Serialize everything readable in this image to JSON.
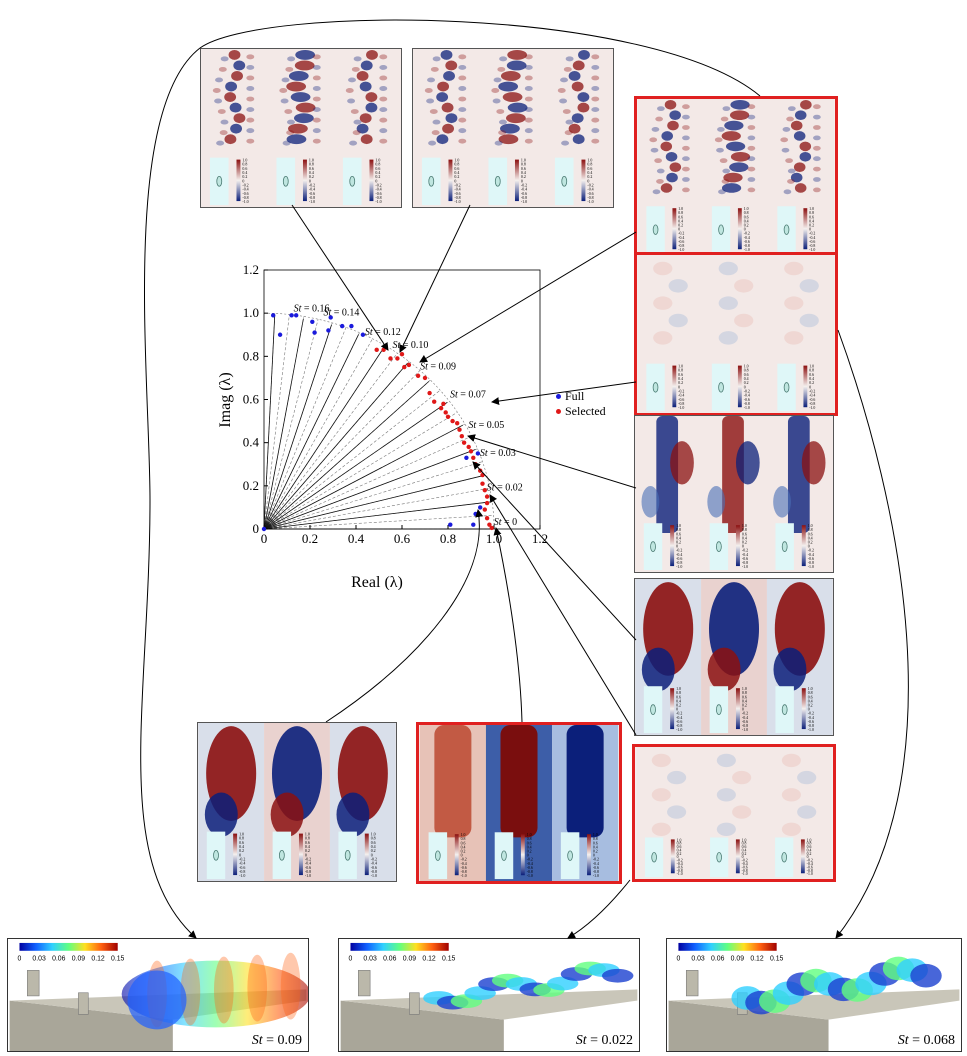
{
  "chart_data": {
    "type": "scatter",
    "xlabel": "Real (λ)",
    "ylabel": "Imag (λ)",
    "xlim": [
      0,
      1.2
    ],
    "ylim": [
      0,
      1.2
    ],
    "xticks": [
      "0",
      "0.2",
      "0.4",
      "0.6",
      "0.8",
      "1.0",
      "1.2"
    ],
    "yticks": [
      "0",
      "0.2",
      "0.4",
      "0.6",
      "0.8",
      "1.0",
      "1.2"
    ],
    "legend_position": "right",
    "series": [
      {
        "name": "Full",
        "color": "#1a1adc",
        "points": [
          [
            0.04,
            0.99
          ],
          [
            0.07,
            0.9
          ],
          [
            0.12,
            0.99
          ],
          [
            0.14,
            0.99
          ],
          [
            0.21,
            0.96
          ],
          [
            0.22,
            0.91
          ],
          [
            0.28,
            0.92
          ],
          [
            0.29,
            0.98
          ],
          [
            0.34,
            0.94
          ],
          [
            0.38,
            0.94
          ],
          [
            0.43,
            0.9
          ],
          [
            0.81,
            0.02
          ],
          [
            0.91,
            0.02
          ],
          [
            0.92,
            0.07
          ],
          [
            0.94,
            0.1
          ],
          [
            0.88,
            0.33
          ],
          [
            0.93,
            0.35
          ],
          [
            0.0,
            0.0
          ]
        ]
      },
      {
        "name": "Selected",
        "color": "#e01818",
        "points": [
          [
            0.49,
            0.83
          ],
          [
            0.52,
            0.83
          ],
          [
            0.55,
            0.79
          ],
          [
            0.58,
            0.79
          ],
          [
            0.6,
            0.81
          ],
          [
            0.61,
            0.75
          ],
          [
            0.63,
            0.76
          ],
          [
            0.67,
            0.71
          ],
          [
            0.7,
            0.7
          ],
          [
            0.72,
            0.63
          ],
          [
            0.74,
            0.59
          ],
          [
            0.77,
            0.56
          ],
          [
            0.78,
            0.58
          ],
          [
            0.79,
            0.54
          ],
          [
            0.8,
            0.52
          ],
          [
            0.82,
            0.5
          ],
          [
            0.84,
            0.49
          ],
          [
            0.85,
            0.46
          ],
          [
            0.86,
            0.43
          ],
          [
            0.87,
            0.4
          ],
          [
            0.89,
            0.38
          ],
          [
            0.9,
            0.36
          ],
          [
            0.91,
            0.33
          ],
          [
            0.92,
            0.3
          ],
          [
            0.94,
            0.27
          ],
          [
            0.95,
            0.25
          ],
          [
            0.95,
            0.21
          ],
          [
            0.96,
            0.18
          ],
          [
            0.97,
            0.15
          ],
          [
            0.97,
            0.12
          ],
          [
            0.96,
            0.09
          ],
          [
            0.97,
            0.05
          ],
          [
            0.98,
            0.02
          ],
          [
            0.99,
            0.005
          ]
        ]
      }
    ],
    "annotations": [
      {
        "label": "St = 0.16",
        "x": 0.12,
        "y": 0.99
      },
      {
        "label": "St = 0.14",
        "x": 0.25,
        "y": 0.97
      },
      {
        "label": "St = 0.12",
        "x": 0.43,
        "y": 0.88
      },
      {
        "label": "St = 0.10",
        "x": 0.55,
        "y": 0.82
      },
      {
        "label": "St = 0.09",
        "x": 0.67,
        "y": 0.72
      },
      {
        "label": "St = 0.07",
        "x": 0.8,
        "y": 0.59
      },
      {
        "label": "St = 0.05",
        "x": 0.88,
        "y": 0.45
      },
      {
        "label": "St = 0.03",
        "x": 0.93,
        "y": 0.32
      },
      {
        "label": "St = 0.02",
        "x": 0.96,
        "y": 0.16
      },
      {
        "label": "St = 0",
        "x": 0.99,
        "y": 0.0
      }
    ]
  },
  "colorbar_ticks": [
    "1.0",
    "0.8",
    "0.6",
    "0.4",
    "0.2",
    "0",
    "-0.2",
    "-0.4",
    "-0.6",
    "-0.8",
    "-1.0"
  ],
  "iso_colorbar_ticks": [
    "0",
    "0.03",
    "0.06",
    "0.09",
    "0.12",
    "0.15"
  ],
  "iso_panels": [
    {
      "st_prefix": "St",
      "st_value": " = 0.09"
    },
    {
      "st_prefix": "St",
      "st_value": " = 0.022"
    },
    {
      "st_prefix": "St",
      "st_value": " = 0.068"
    }
  ],
  "colors": {
    "positive": "#8b1010",
    "negative": "#0b1f7a",
    "selected_frame": "#e02020",
    "line": "#000000"
  }
}
